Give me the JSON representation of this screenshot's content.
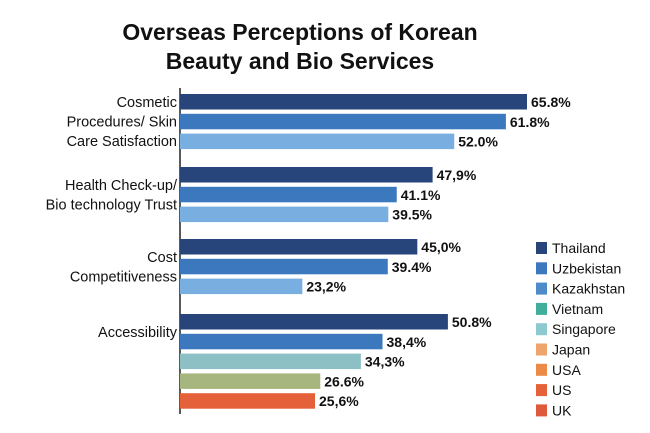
{
  "chart_data": {
    "type": "bar",
    "orientation": "horizontal",
    "title": [
      "Overseas Perceptions of Korean",
      "Beauty and Bio Services"
    ],
    "xlabel": "",
    "ylabel": "",
    "xlim": [
      0,
      70
    ],
    "grid": false,
    "legend_position": "right",
    "groups": [
      {
        "label": [
          "Cosmetic",
          "Procedures/ Skin",
          "Care Satisfaction"
        ],
        "bars": [
          {
            "value": 65.8,
            "label": "65.8%",
            "color": "#27457a"
          },
          {
            "value": 61.8,
            "label": "61.8%",
            "color": "#3b78bd"
          },
          {
            "value": 52.0,
            "label": "52.0%",
            "color": "#78aee0"
          }
        ]
      },
      {
        "label": [
          "Health Check-up/",
          "Bio technology Trust"
        ],
        "bars": [
          {
            "value": 47.9,
            "label": "47,9%",
            "color": "#27457a"
          },
          {
            "value": 41.1,
            "label": "41.1%",
            "color": "#3b78bd"
          },
          {
            "value": 39.5,
            "label": "39.5%",
            "color": "#78aee0"
          }
        ]
      },
      {
        "label": [
          "Cost",
          "Competitiveness"
        ],
        "bars": [
          {
            "value": 45.0,
            "label": "45,0%",
            "color": "#27457a"
          },
          {
            "value": 39.4,
            "label": "39.4%",
            "color": "#3b78bd"
          },
          {
            "value": 23.2,
            "label": "23,2%",
            "color": "#78aee0"
          }
        ]
      },
      {
        "label": [
          "Accessibility"
        ],
        "bars": [
          {
            "value": 50.8,
            "label": "50.8%",
            "color": "#27457a"
          },
          {
            "value": 38.4,
            "label": "38,4%",
            "color": "#3b78bd"
          },
          {
            "value": 34.3,
            "label": "34,3%",
            "color": "#8cc0c4"
          },
          {
            "value": 26.6,
            "label": "26.6%",
            "color": "#a6b67e"
          },
          {
            "value": 25.6,
            "label": "25,6%",
            "color": "#e4613a"
          }
        ]
      }
    ],
    "legend": [
      {
        "name": "Thailand",
        "color": "#27457a"
      },
      {
        "name": "Uzbekistan",
        "color": "#3b78bd"
      },
      {
        "name": "Kazakhstan",
        "color": "#4d8cc9"
      },
      {
        "name": "Vietnam",
        "color": "#3fae9a"
      },
      {
        "name": "Singapore",
        "color": "#8ccad0"
      },
      {
        "name": "Japan",
        "color": "#eea46a"
      },
      {
        "name": "USA",
        "color": "#ec8a47"
      },
      {
        "name": "US",
        "color": "#e4613a"
      },
      {
        "name": "UK",
        "color": "#de5a3c"
      }
    ]
  }
}
